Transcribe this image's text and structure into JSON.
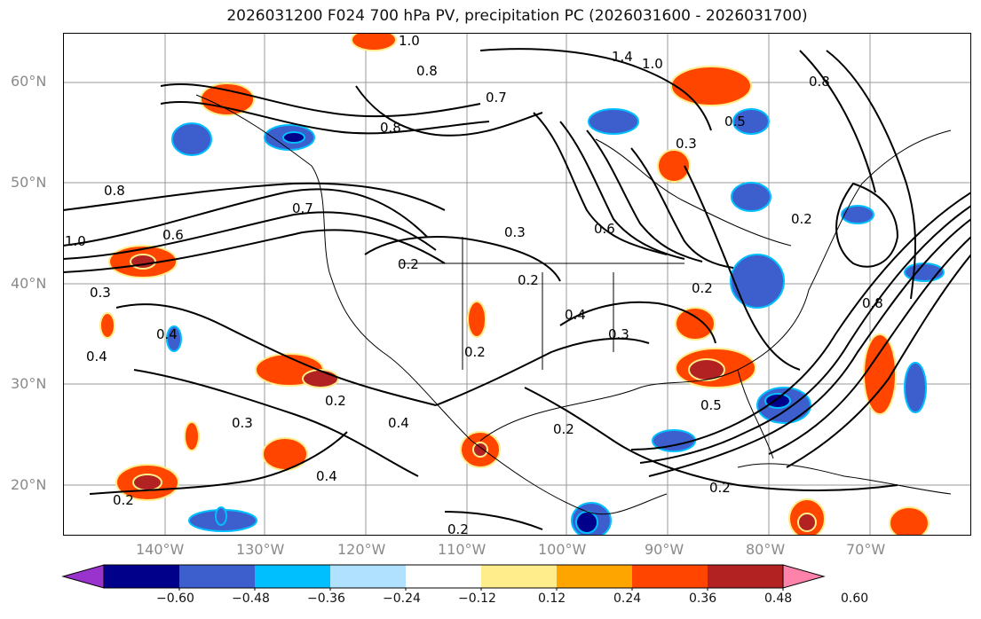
{
  "title": "2026031200 F024 700 hPa PV, precipitation PC (2026031600 - 2026031700)",
  "lat_labels": [
    "60°N",
    "50°N",
    "40°N",
    "30°N",
    "20°N"
  ],
  "lon_labels": [
    "140°W",
    "130°W",
    "120°W",
    "110°W",
    "100°W",
    "90°W",
    "80°W",
    "70°W"
  ],
  "contour_labels": [
    "1.0",
    "0.8",
    "0.7",
    "0.8",
    "1.4",
    "1.0",
    "0.8",
    "0.5",
    "0.3",
    "0.2",
    "0.8",
    "0.7",
    "0.6",
    "1.0",
    "0.6",
    "0.3",
    "0.2",
    "0.2",
    "0.3",
    "0.2",
    "0.4",
    "0.4",
    "0.2",
    "0.3",
    "0.4",
    "0.4",
    "0.2",
    "0.5",
    "0.2",
    "0.4",
    "0.2",
    "0.2",
    "0.3",
    "0.2",
    "0.8"
  ],
  "colorbar": {
    "ticks": [
      "−0.60",
      "−0.48",
      "−0.36",
      "−0.24",
      "−0.12",
      "0.12",
      "0.24",
      "0.36",
      "0.48",
      "0.60"
    ],
    "colors": [
      "#9a32cd",
      "#00008b",
      "#3c5fcd",
      "#00bfff",
      "#b0e2ff",
      "#ffffff",
      "#ffec8b",
      "#ffa500",
      "#ff4500",
      "#b22222",
      "#ff82ab"
    ]
  }
}
